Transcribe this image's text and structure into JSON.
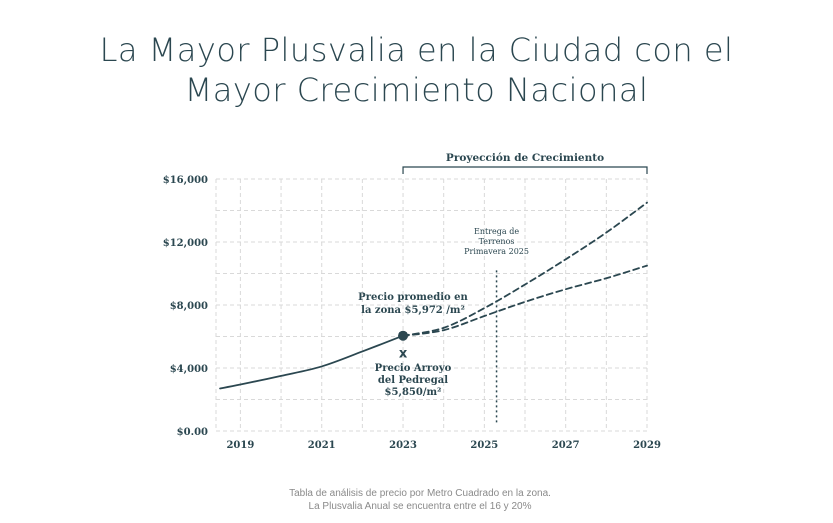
{
  "title": {
    "line1": "La Mayor Plusvalia en la Ciudad con el",
    "line2": "Mayor Crecimiento Nacional"
  },
  "caption": {
    "line1": "Tabla de análisis de precio por Metro Cuadrado en la zona.",
    "line2": "La Plusvalia Anual se encuentra entre el 16 y 20%"
  },
  "colors": {
    "primary": "#2b4750",
    "grid": "#d9d9d9",
    "caption": "#8a8a8a"
  },
  "chart_data": {
    "type": "line",
    "title": "",
    "xlabel": "",
    "ylabel": "",
    "xlim": [
      2018.4,
      2029
    ],
    "ylim": [
      0,
      16000
    ],
    "x_ticks": [
      2019,
      2021,
      2023,
      2025,
      2027,
      2029
    ],
    "y_ticks": [
      {
        "value": 0,
        "label": "$0.00"
      },
      {
        "value": 4000,
        "label": "$4,000"
      },
      {
        "value": 8000,
        "label": "$8,000"
      },
      {
        "value": 12000,
        "label": "$12,000"
      },
      {
        "value": 16000,
        "label": "$16,000"
      }
    ],
    "grid": true,
    "series": [
      {
        "style": "solid",
        "x": [
          2018.5,
          2019,
          2020,
          2021,
          2022,
          2023
        ],
        "y": [
          2700,
          2950,
          3500,
          4100,
          5050,
          6050
        ]
      },
      {
        "style": "dashed",
        "x": [
          2023,
          2024,
          2025,
          2026,
          2027,
          2028,
          2029
        ],
        "y": [
          6050,
          6550,
          7800,
          9300,
          10900,
          12600,
          14500
        ]
      },
      {
        "style": "dashed",
        "x": [
          2023,
          2024,
          2025,
          2026,
          2027,
          2028,
          2029
        ],
        "y": [
          6050,
          6400,
          7300,
          8200,
          9000,
          9700,
          10500
        ]
      }
    ],
    "highlight_point": {
      "x": 2023,
      "y": 6050
    },
    "cross_marker": {
      "x": 2023,
      "y": 5000,
      "symbol": "x"
    },
    "vertical_marker": {
      "x": 2025.3
    },
    "projection_bracket": {
      "from": 2023,
      "to": 2029,
      "label": "Proyección de Crecimiento"
    },
    "annotations": {
      "entrega": [
        "Entrega de",
        "Terrenos",
        "Primavera 2025"
      ],
      "precio_promedio": [
        "Precio promedio en",
        "la zona $5,972 /m²"
      ],
      "arroyo": [
        "Precio Arroyo",
        "del Pedregal",
        "$5,850/m²"
      ]
    }
  }
}
